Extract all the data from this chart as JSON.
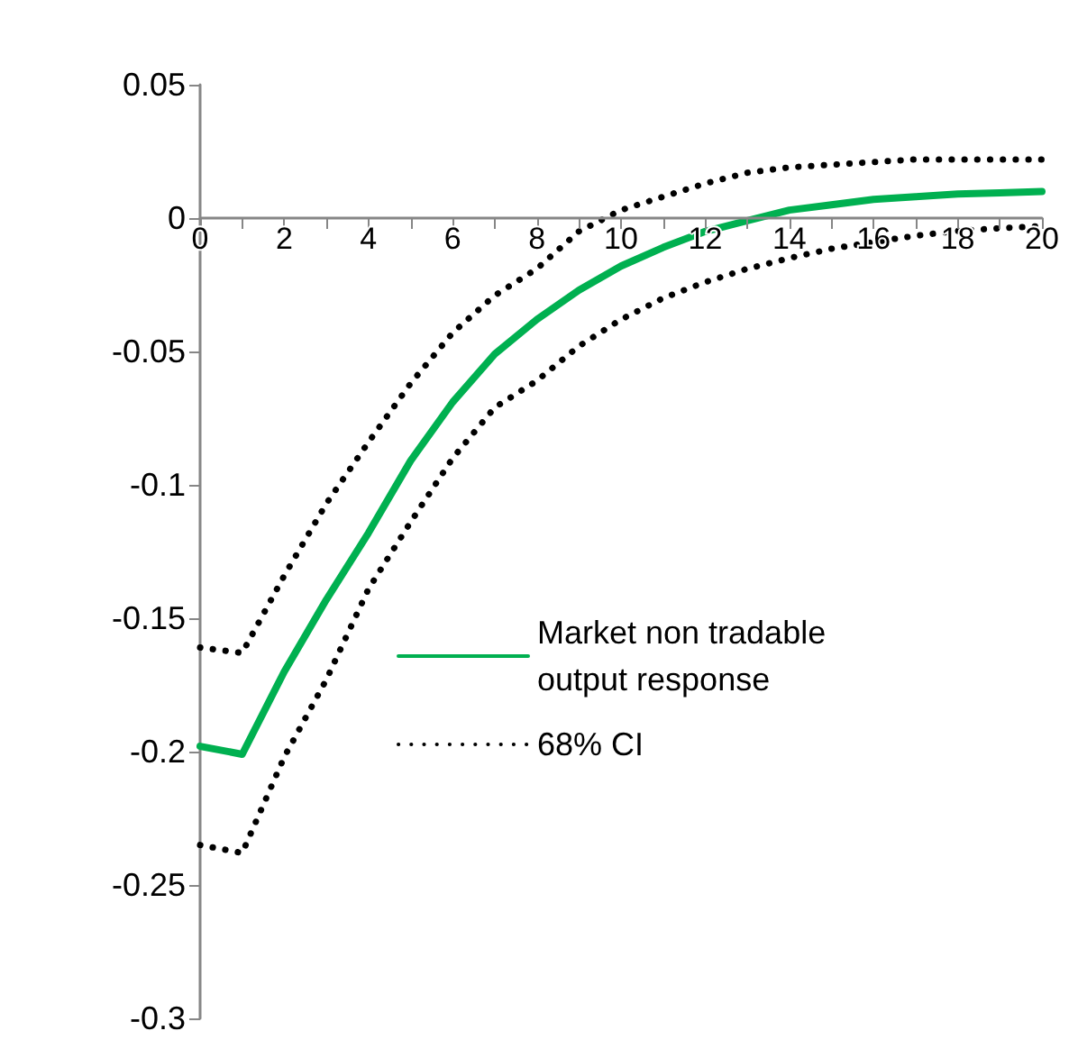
{
  "chart_data": {
    "type": "line",
    "categories": [
      "0",
      null,
      "2",
      null,
      "4",
      null,
      "6",
      null,
      "8",
      null,
      "10",
      null,
      "12",
      null,
      "14",
      null,
      "16",
      null,
      "18",
      null,
      "20"
    ],
    "series": [
      {
        "name": "Market non tradable output response",
        "color": "#00b050",
        "line_style": "solid",
        "values": [
          -0.198,
          -0.201,
          -0.17,
          -0.143,
          -0.118,
          -0.091,
          -0.069,
          -0.051,
          -0.038,
          -0.027,
          -0.018,
          -0.011,
          -0.005,
          -0.001,
          0.003,
          0.005,
          0.007,
          0.008,
          0.009,
          0.0095,
          0.01
        ]
      },
      {
        "name": "68% CI",
        "color": "#000000",
        "line_style": "dotted",
        "values": [
          -0.161,
          -0.163,
          -0.134,
          -0.107,
          -0.084,
          -0.062,
          -0.043,
          -0.029,
          -0.019,
          -0.005,
          0.003,
          0.008,
          0.013,
          0.017,
          0.019,
          0.02,
          0.021,
          0.022,
          0.022,
          0.022,
          0.022
        ]
      },
      {
        "color": "#000000",
        "line_style": "dotted",
        "values": [
          -0.235,
          -0.238,
          -0.202,
          -0.173,
          -0.139,
          -0.114,
          -0.09,
          -0.071,
          -0.061,
          -0.048,
          -0.038,
          -0.03,
          -0.024,
          -0.019,
          -0.015,
          -0.0115,
          -0.009,
          -0.0066,
          -0.0048,
          -0.0038,
          -0.003
        ]
      }
    ],
    "ylim": [
      -0.3,
      0.05
    ],
    "yticks": [
      0.05,
      0,
      -0.05,
      -0.1,
      -0.15,
      -0.2,
      -0.25,
      -0.3
    ],
    "grid": false,
    "legend": "center",
    "marker": "none"
  }
}
